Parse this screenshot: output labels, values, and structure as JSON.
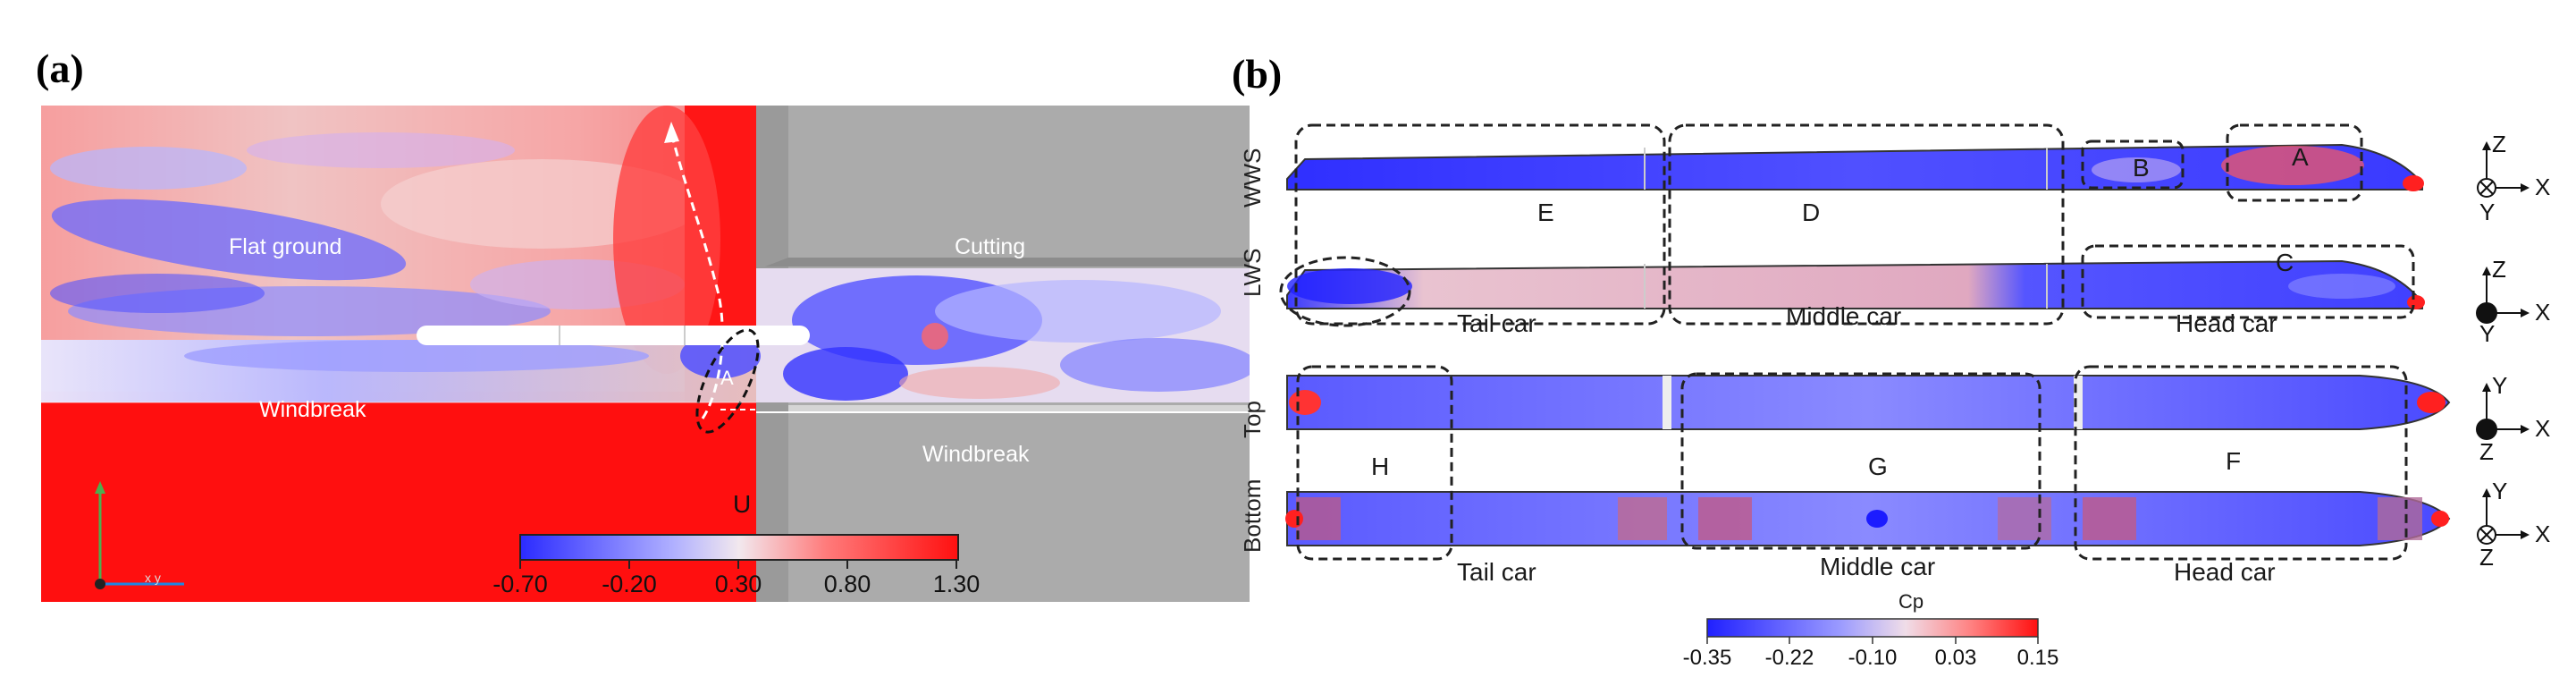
{
  "panel_a": {
    "label": "(a)",
    "regions": {
      "flat_ground": "Flat ground",
      "cutting": "Cutting",
      "windbreak_left": "Windbreak",
      "windbreak_right": "Windbreak"
    },
    "marker_A": "A",
    "wind_label": "U",
    "axes_label": "x y",
    "colorbar": {
      "ticks": [
        "-0.70",
        "-0.20",
        "0.30",
        "0.80",
        "1.30"
      ],
      "colors": {
        "low": "#2b2bff",
        "mid": "#f0f0f0",
        "high": "#ff1a1a"
      }
    }
  },
  "panel_b": {
    "label": "(b)",
    "views": [
      "WWS",
      "LWS",
      "Top",
      "Bottom"
    ],
    "region_letters": [
      "A",
      "B",
      "C",
      "D",
      "E",
      "F",
      "G",
      "H"
    ],
    "car_labels_upper": [
      "Tail car",
      "Middle car",
      "Head car"
    ],
    "car_labels_lower": [
      "Tail car",
      "Middle car",
      "Head car"
    ],
    "axes": {
      "wws": [
        "Z",
        "X",
        "Y"
      ],
      "lws": [
        "Z",
        "X",
        "Y"
      ],
      "top": [
        "Y",
        "X",
        "Z"
      ],
      "bottom": [
        "Y",
        "X",
        "Z"
      ]
    },
    "colorbar": {
      "title": "Cp",
      "ticks": [
        "-0.35",
        "-0.22",
        "-0.10",
        "0.03",
        "0.15"
      ]
    }
  }
}
